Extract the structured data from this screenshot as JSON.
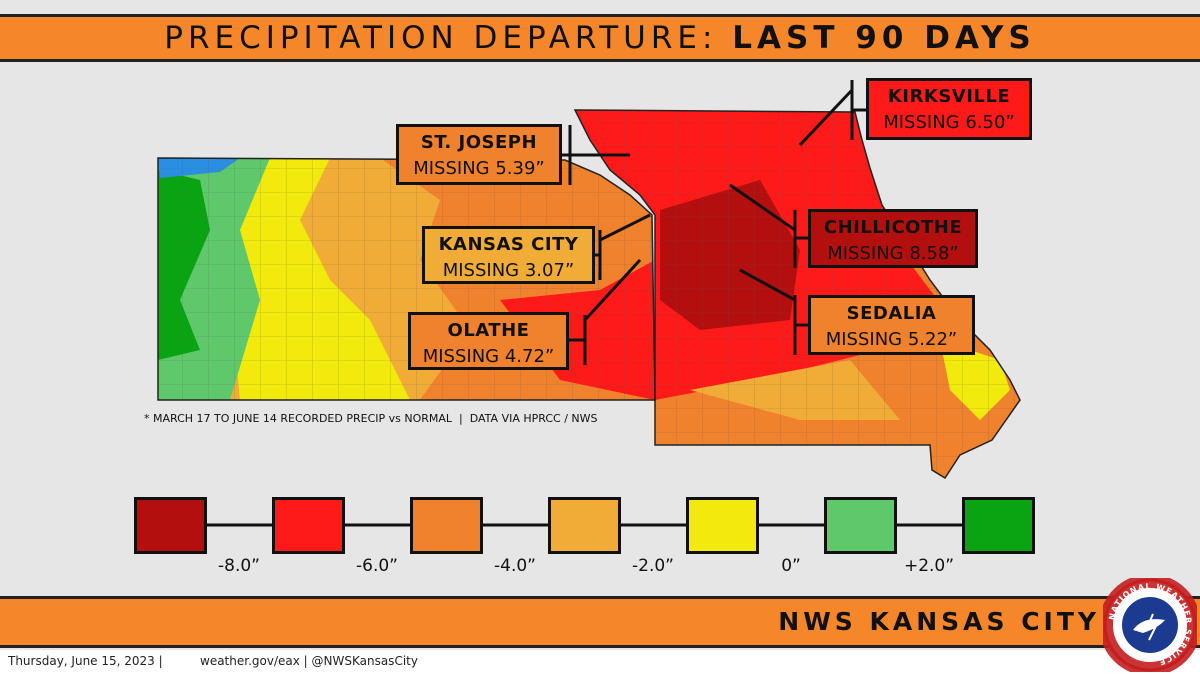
{
  "header": {
    "title": "PRECIPITATION DEPARTURE: ",
    "title_bold": "LAST 90 DAYS"
  },
  "callouts": [
    {
      "city": "ST. JOSEPH",
      "text": "MISSING 5.39”"
    },
    {
      "city": "KANSAS CITY",
      "text": "MISSING 3.07”"
    },
    {
      "city": "OLATHE",
      "text": "MISSING 4.72”"
    },
    {
      "city": "KIRKSVILLE",
      "text": "MISSING 6.50”"
    },
    {
      "city": "CHILLICOTHE",
      "text": "MISSING 8.58”"
    },
    {
      "city": "SEDALIA",
      "text": "MISSING 5.22”"
    }
  ],
  "footnote": "* MARCH 17 TO JUNE 14 RECORDED PRECIP vs NORMAL  |  DATA VIA HPRCC / NWS",
  "legend": {
    "colors": [
      "#b30f0f",
      "#ff1a1a",
      "#f0822d",
      "#f0ac36",
      "#f2ea0c",
      "#5ec86a",
      "#0aa412"
    ],
    "labels": [
      "-8.0”",
      "-6.0”",
      "-4.0”",
      "-2.0”",
      "0”",
      "+2.0”"
    ]
  },
  "footer": {
    "office": "NWS KANSAS CITY",
    "date": "Thursday, June 15, 2023 |",
    "links": "weather.gov/eax | @NWSKansasCity",
    "logo_text": "NATIONAL WEATHER SERVICE"
  }
}
